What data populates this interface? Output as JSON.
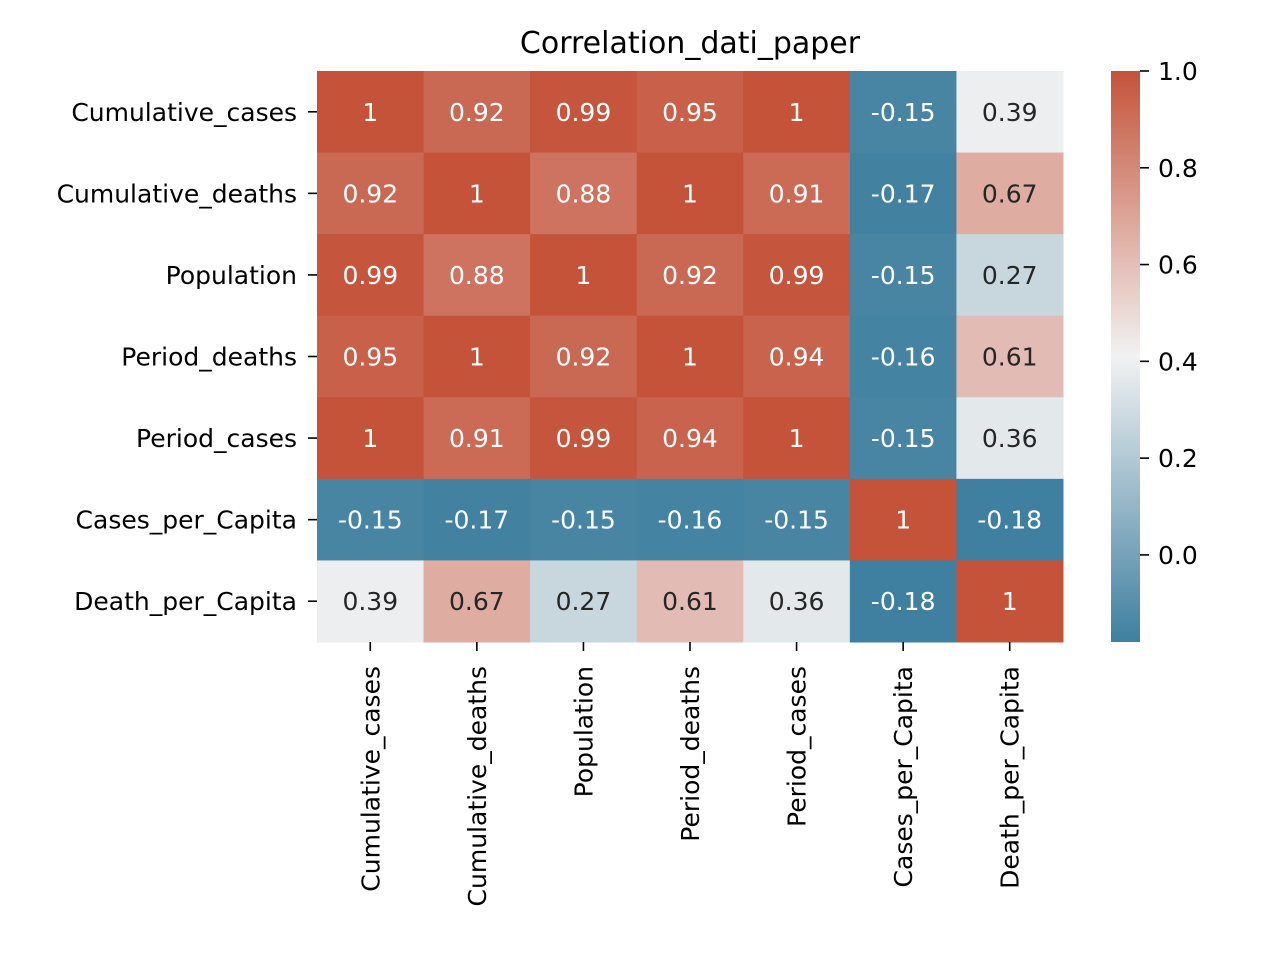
{
  "chart_data": {
    "type": "heatmap",
    "title": "Correlation_dati_paper",
    "rows": [
      "Cumulative_cases",
      "Cumulative_deaths",
      "Population",
      "Period_deaths",
      "Period_cases",
      "Cases_per_Capita",
      "Death_per_Capita"
    ],
    "columns": [
      "Cumulative_cases",
      "Cumulative_deaths",
      "Population",
      "Period_deaths",
      "Period_cases",
      "Cases_per_Capita",
      "Death_per_Capita"
    ],
    "values": [
      [
        1,
        0.92,
        0.99,
        0.95,
        1,
        -0.15,
        0.39
      ],
      [
        0.92,
        1,
        0.88,
        1,
        0.91,
        -0.17,
        0.67
      ],
      [
        0.99,
        0.88,
        1,
        0.92,
        0.99,
        -0.15,
        0.27
      ],
      [
        0.95,
        1,
        0.92,
        1,
        0.94,
        -0.16,
        0.61
      ],
      [
        1,
        0.91,
        0.99,
        0.94,
        1,
        -0.15,
        0.36
      ],
      [
        -0.15,
        -0.17,
        -0.15,
        -0.16,
        -0.15,
        1,
        -0.18
      ],
      [
        0.39,
        0.67,
        0.27,
        0.61,
        0.36,
        -0.18,
        1
      ]
    ],
    "labels": [
      [
        "1",
        "0.92",
        "0.99",
        "0.95",
        "1",
        "-0.15",
        "0.39"
      ],
      [
        "0.92",
        "1",
        "0.88",
        "1",
        "0.91",
        "-0.17",
        "0.67"
      ],
      [
        "0.99",
        "0.88",
        "1",
        "0.92",
        "0.99",
        "-0.15",
        "0.27"
      ],
      [
        "0.95",
        "1",
        "0.92",
        "1",
        "0.94",
        "-0.16",
        "0.61"
      ],
      [
        "1",
        "0.91",
        "0.99",
        "0.94",
        "1",
        "-0.15",
        "0.36"
      ],
      [
        "-0.15",
        "-0.17",
        "-0.15",
        "-0.16",
        "-0.15",
        "1",
        "-0.18"
      ],
      [
        "0.39",
        "0.67",
        "0.27",
        "0.61",
        "0.36",
        "-0.18",
        "1"
      ]
    ],
    "colorbar": {
      "vmin": -0.18,
      "vmax": 1.0,
      "ticks": [
        0.0,
        0.2,
        0.4,
        0.6,
        0.8,
        1.0
      ],
      "tick_labels": [
        "0.0",
        "0.2",
        "0.4",
        "0.6",
        "0.8",
        "1.0"
      ]
    },
    "colormap": {
      "type": "diverging",
      "low": "#3f7f9f",
      "mid": "#f2f2f2",
      "high": "#c4533a"
    },
    "grid": false,
    "legend": "colorbar-right"
  }
}
